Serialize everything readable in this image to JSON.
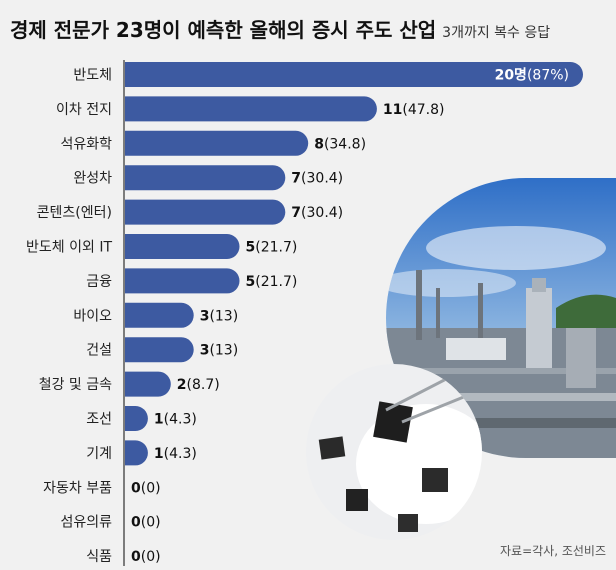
{
  "title": "경제 전문가 23명이 예측한 올해의 증시 주도 산업",
  "subtitle": "3개까지 복수 응답",
  "source": "자료=각사, 조선비즈",
  "colors": {
    "bar": "#3d5aa1",
    "axis": "#555555"
  },
  "chart_data": {
    "type": "bar",
    "orientation": "horizontal",
    "categories": [
      "반도체",
      "이차 전지",
      "석유화학",
      "완성차",
      "콘텐츠(엔터)",
      "반도체 이외 IT",
      "금융",
      "바이오",
      "건설",
      "철강 및 금속",
      "조선",
      "기계",
      "자동차 부품",
      "섬유의류",
      "식품"
    ],
    "values": [
      20,
      11,
      8,
      7,
      7,
      5,
      5,
      3,
      3,
      2,
      1,
      1,
      0,
      0,
      0
    ],
    "value_labels": [
      "20명",
      "11",
      "8",
      "7",
      "7",
      "5",
      "5",
      "3",
      "3",
      "2",
      "1",
      "1",
      "0",
      "0",
      "0"
    ],
    "percent_labels": [
      "(87%)",
      "(47.8)",
      "(34.8)",
      "(30.4)",
      "(30.4)",
      "(21.7)",
      "(21.7)",
      "(13)",
      "(13)",
      "(8.7)",
      "(4.3)",
      "(4.3)",
      "(0)",
      "(0)",
      "(0)"
    ],
    "xlim": [
      0,
      20
    ],
    "grid": false
  }
}
